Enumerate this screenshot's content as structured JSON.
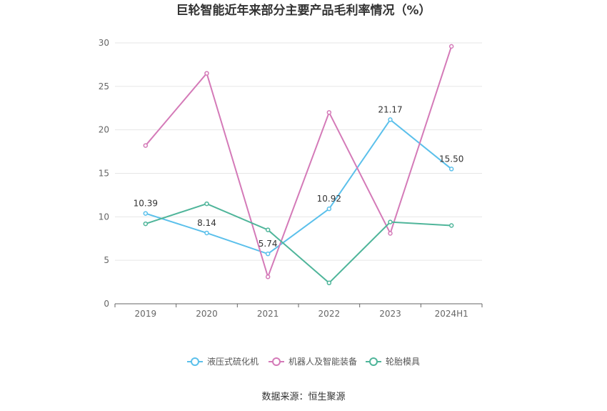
{
  "chart_data": {
    "type": "line",
    "title": "巨轮智能近年来部分主要产品毛利率情况（%）",
    "xlabel": "",
    "ylabel": "",
    "categories": [
      "2019",
      "2020",
      "2021",
      "2022",
      "2023",
      "2024H1"
    ],
    "ylim": [
      0,
      30
    ],
    "yticks": [
      0,
      5,
      10,
      15,
      20,
      25,
      30
    ],
    "grid": true,
    "legend_position": "bottom",
    "series": [
      {
        "name": "液压式硫化机",
        "color": "#5bc0eb",
        "values": [
          10.39,
          8.14,
          5.74,
          10.92,
          21.17,
          15.5
        ],
        "labels": [
          "10.39",
          "8.14",
          "5.74",
          "10.92",
          "21.17",
          "15.50"
        ]
      },
      {
        "name": "机器人及智能装备",
        "color": "#d47ab8",
        "values": [
          18.2,
          26.5,
          3.1,
          22.0,
          8.1,
          29.6
        ],
        "labels": []
      },
      {
        "name": "轮胎模具",
        "color": "#4fb59a",
        "values": [
          9.2,
          11.5,
          8.5,
          2.4,
          9.4,
          9.0
        ],
        "labels": []
      }
    ]
  },
  "source_text": "数据来源：恒生聚源"
}
